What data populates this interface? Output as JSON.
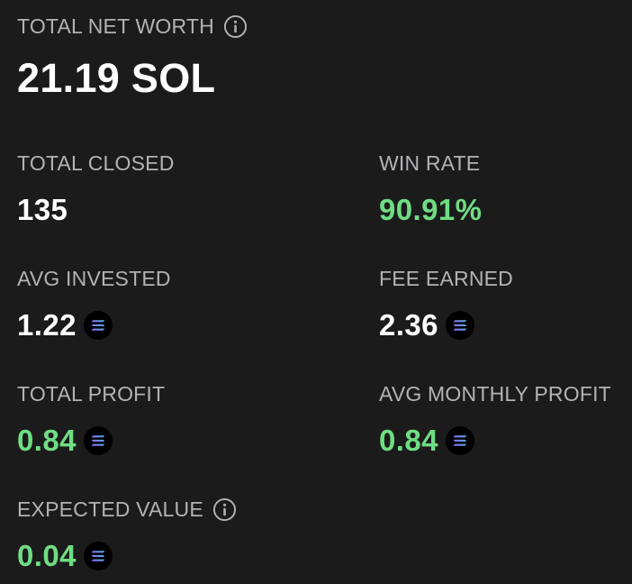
{
  "net_worth": {
    "label": "TOTAL NET WORTH",
    "value": "21.19 SOL",
    "info_icon": "info-icon"
  },
  "stats": {
    "total_closed": {
      "label": "TOTAL CLOSED",
      "value": "135"
    },
    "win_rate": {
      "label": "WIN RATE",
      "value": "90.91%"
    },
    "avg_invested": {
      "label": "AVG INVESTED",
      "value": "1.22",
      "icon": "solana-icon"
    },
    "fee_earned": {
      "label": "FEE EARNED",
      "value": "2.36",
      "icon": "solana-icon"
    },
    "total_profit": {
      "label": "TOTAL PROFIT",
      "value": "0.84",
      "icon": "solana-icon"
    },
    "avg_monthly_profit": {
      "label": "AVG MONTHLY PROFIT",
      "value": "0.84",
      "icon": "solana-icon"
    },
    "expected_value": {
      "label": "EXPECTED VALUE",
      "value": "0.04",
      "icon": "solana-icon",
      "info_icon": "info-icon"
    }
  },
  "colors": {
    "background": "#1b1b1c",
    "label": "#b3b3b6",
    "positive": "#6fdd83",
    "neutral": "#ffffff"
  }
}
